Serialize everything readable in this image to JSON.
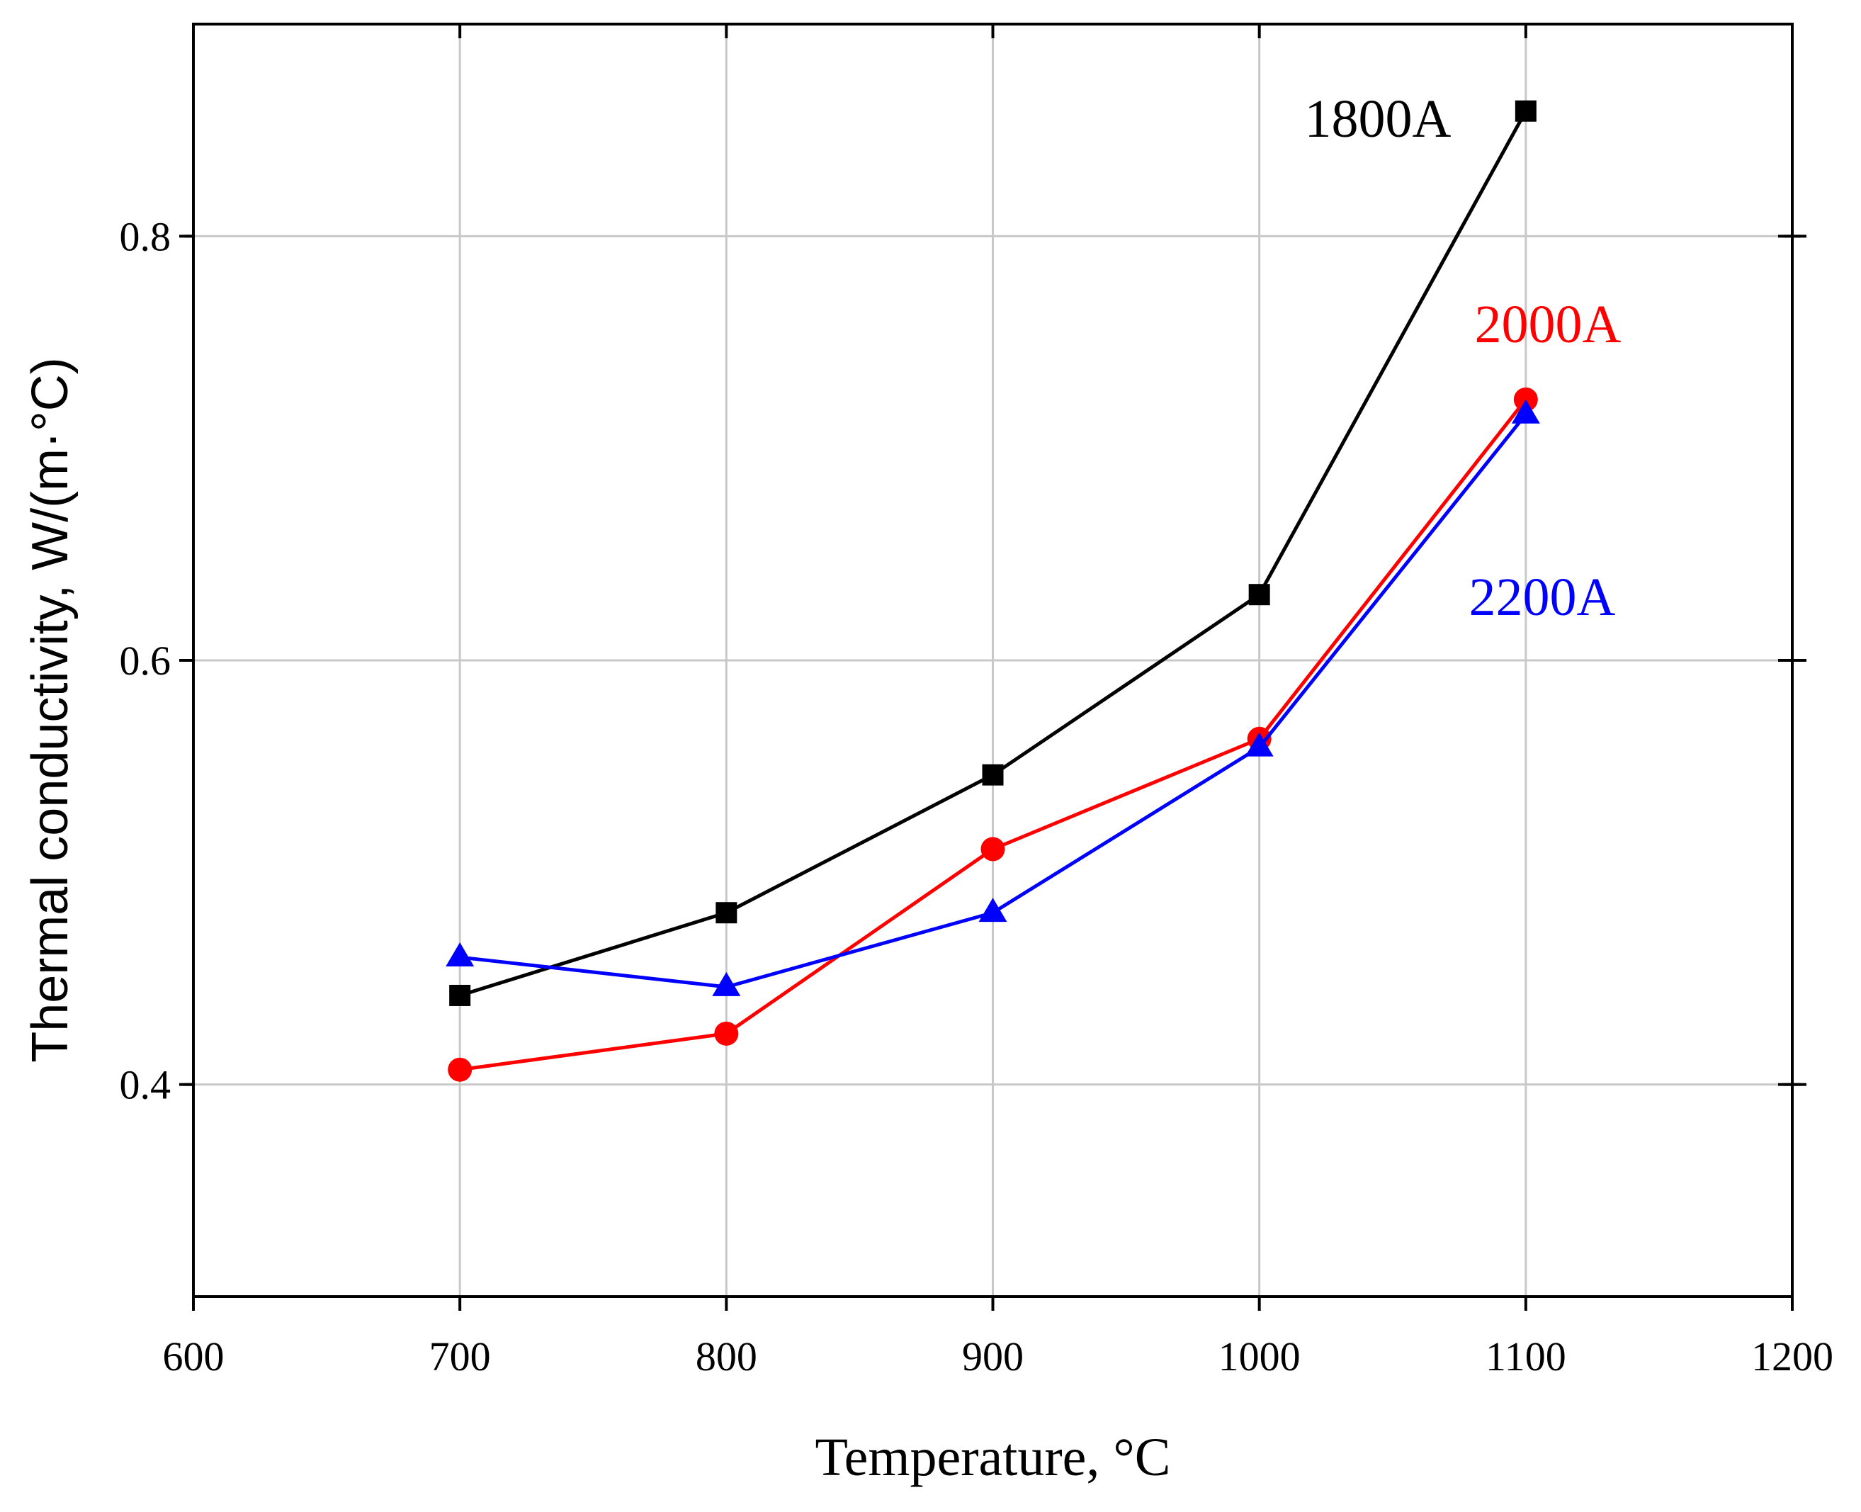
{
  "chart_data": {
    "type": "line",
    "title": "",
    "xlabel": "Temperature, °C",
    "ylabel": "Thermal conductivity, W/(m·°C)",
    "xlim": [
      600,
      1200
    ],
    "ylim": [
      0.3,
      0.9
    ],
    "xticks": [
      600,
      700,
      800,
      900,
      1000,
      1100,
      1200
    ],
    "xtick_labels": [
      "600",
      "700",
      "800",
      "900",
      "1000",
      "1100",
      "1200"
    ],
    "yticks": [
      0.4,
      0.6,
      0.8
    ],
    "ytick_labels": [
      "0.4",
      "0.6",
      "0.8"
    ],
    "grid": true,
    "legend": "inline labels near series ends",
    "series": [
      {
        "name": "1800A",
        "color": "#000000",
        "marker": "square",
        "x": [
          700,
          800,
          900,
          1000,
          1100
        ],
        "values": [
          0.442,
          0.481,
          0.546,
          0.631,
          0.859
        ]
      },
      {
        "name": "2000A",
        "color": "#ff0000",
        "marker": "circle",
        "x": [
          700,
          800,
          900,
          1000,
          1100
        ],
        "values": [
          0.407,
          0.424,
          0.511,
          0.563,
          0.723
        ]
      },
      {
        "name": "2200A",
        "color": "#0000ff",
        "marker": "triangle",
        "x": [
          700,
          800,
          900,
          1000,
          1100
        ],
        "values": [
          0.46,
          0.446,
          0.481,
          0.559,
          0.716
        ]
      }
    ]
  }
}
